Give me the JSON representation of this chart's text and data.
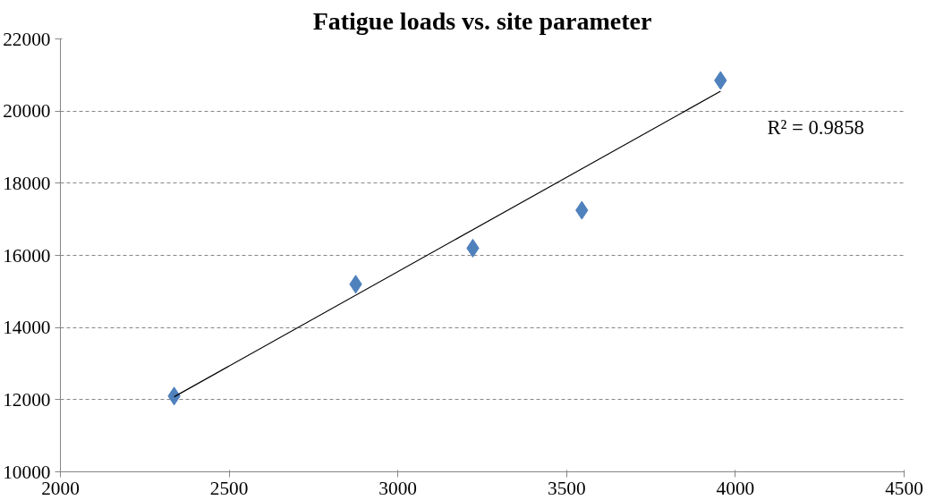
{
  "chart_data": {
    "type": "scatter",
    "title": "Fatigue loads vs. site parameter",
    "series": [
      {
        "color": "#4f81bd",
        "marker": "diamond",
        "x": [
          2337,
          2875,
          3222,
          3545,
          3956
        ],
        "values": [
          12100,
          15200,
          16200,
          17250,
          20850
        ]
      },
      {
        "type": "line",
        "color": "#000000",
        "marker": "none",
        "line_style": "solid",
        "x": [
          2337,
          3956
        ],
        "values": [
          12080,
          20550
        ]
      }
    ],
    "annotations": [
      "R² = 0.9858"
    ],
    "xlim": [
      2000,
      4500
    ],
    "xticks": [
      2000,
      2500,
      3000,
      3500,
      4000,
      4500
    ],
    "ylim": [
      10000,
      22000
    ],
    "yticks": [
      10000,
      12000,
      14000,
      16000,
      18000,
      20000,
      22000
    ],
    "grid": "y",
    "legend": false
  }
}
